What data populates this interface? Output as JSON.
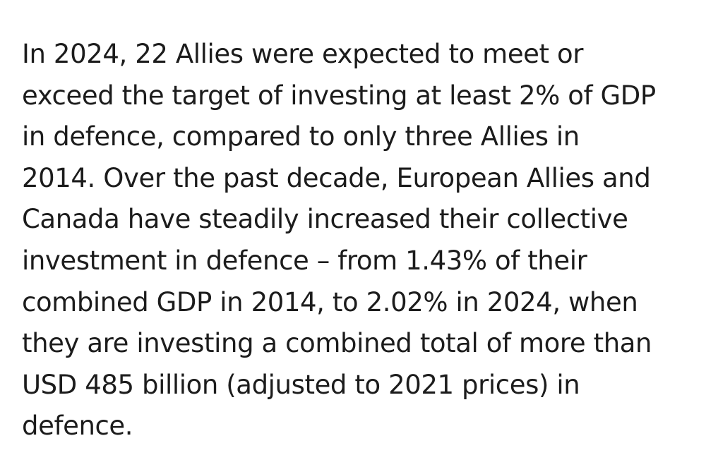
{
  "paragraph": {
    "lines": [
      "In 2024, 22 Allies were expected to meet or",
      "exceed the target of investing at least 2% of GDP",
      "in defence, compared to only three Allies in",
      "2014.  Over the past decade, European Allies and",
      "Canada have steadily increased their collective",
      "investment in defence – from 1.43% of their",
      "combined GDP in 2014, to 2.02% in 2024, when",
      "they are investing a combined total of more than",
      "USD 485 billion (adjusted to 2021 prices) in",
      "defence."
    ]
  }
}
